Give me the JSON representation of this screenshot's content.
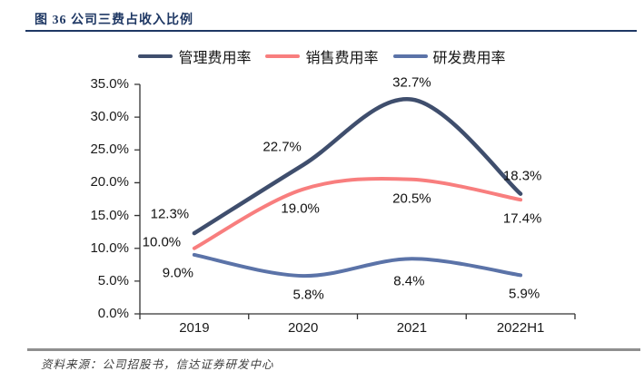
{
  "header": {
    "title": "图 36 公司三费占收入比例",
    "rule_color": "#1F3864"
  },
  "footer": {
    "source": "资料来源：公司招股书，信达证券研发中心"
  },
  "chart_data": {
    "type": "line",
    "smooth": true,
    "grid": false,
    "legend_position": "top",
    "categories": [
      "2019",
      "2020",
      "2021",
      "2022H1"
    ],
    "series": [
      {
        "name": "管理费用率",
        "values": [
          12.3,
          22.7,
          32.7,
          18.3
        ],
        "labels": [
          "12.3%",
          "22.7%",
          "32.7%",
          "18.3%"
        ],
        "color": "#3F4E6D"
      },
      {
        "name": "销售费用率",
        "values": [
          10.0,
          19.0,
          20.5,
          17.4
        ],
        "labels": [
          "10.0%",
          "19.0%",
          "20.5%",
          "17.4%"
        ],
        "color": "#F87E7E"
      },
      {
        "name": "研发费用率",
        "values": [
          9.0,
          5.8,
          8.4,
          5.9
        ],
        "labels": [
          "9.0%",
          "5.8%",
          "8.4%",
          "5.9%"
        ],
        "color": "#5B73A8"
      }
    ],
    "ylim": [
      0,
      35
    ],
    "y_ticks": [
      "35.0%",
      "30.0%",
      "25.0%",
      "20.0%",
      "15.0%",
      "10.0%",
      "5.0%",
      "0.0%"
    ],
    "xlabel": "",
    "ylabel": "",
    "axis_color": "#333333"
  }
}
